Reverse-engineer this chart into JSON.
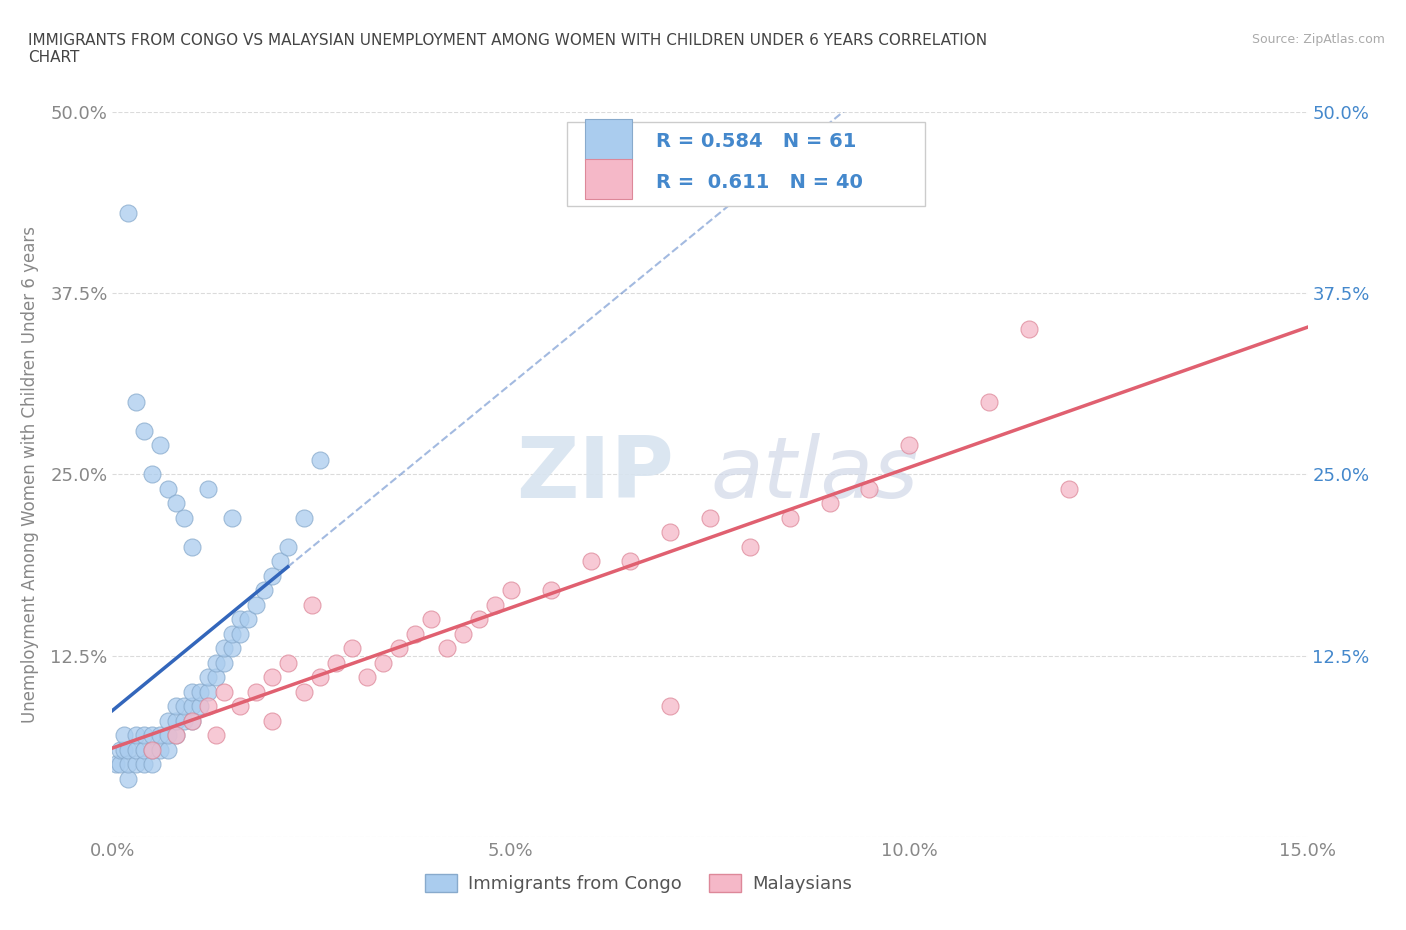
{
  "title": "IMMIGRANTS FROM CONGO VS MALAYSIAN UNEMPLOYMENT AMONG WOMEN WITH CHILDREN UNDER 6 YEARS CORRELATION\nCHART",
  "source": "Source: ZipAtlas.com",
  "ylabel": "Unemployment Among Women with Children Under 6 years",
  "xlim": [
    0.0,
    0.15
  ],
  "ylim": [
    0.0,
    0.5
  ],
  "xticks": [
    0.0,
    0.05,
    0.1,
    0.15
  ],
  "xtick_labels": [
    "0.0%",
    "5.0%",
    "10.0%",
    "15.0%"
  ],
  "yticks": [
    0.0,
    0.125,
    0.25,
    0.375,
    0.5
  ],
  "ytick_labels": [
    "",
    "12.5%",
    "25.0%",
    "37.5%",
    "50.0%"
  ],
  "watermark_zip": "ZIP",
  "watermark_atlas": "atlas",
  "R_congo": 0.584,
  "N_congo": 61,
  "R_malay": 0.611,
  "N_malay": 40,
  "congo_color": "#aaccee",
  "congo_edge": "#88aacc",
  "malay_color": "#f5b8c8",
  "malay_edge": "#dd8899",
  "congo_line_color": "#3366bb",
  "malay_line_color": "#e06070",
  "background_color": "#ffffff",
  "grid_color": "#cccccc",
  "title_color": "#444444",
  "axis_label_color": "#888888",
  "right_tick_color": "#4488cc",
  "congo_x": [
    0.0005,
    0.001,
    0.001,
    0.0015,
    0.0015,
    0.002,
    0.002,
    0.002,
    0.003,
    0.003,
    0.003,
    0.004,
    0.004,
    0.004,
    0.005,
    0.005,
    0.005,
    0.006,
    0.006,
    0.007,
    0.007,
    0.007,
    0.008,
    0.008,
    0.008,
    0.009,
    0.009,
    0.01,
    0.01,
    0.01,
    0.011,
    0.011,
    0.012,
    0.012,
    0.013,
    0.013,
    0.014,
    0.014,
    0.015,
    0.015,
    0.016,
    0.016,
    0.017,
    0.018,
    0.019,
    0.02,
    0.021,
    0.022,
    0.024,
    0.026,
    0.002,
    0.003,
    0.004,
    0.005,
    0.006,
    0.007,
    0.008,
    0.009,
    0.01,
    0.012,
    0.015
  ],
  "congo_y": [
    0.05,
    0.05,
    0.06,
    0.06,
    0.07,
    0.04,
    0.05,
    0.06,
    0.05,
    0.06,
    0.07,
    0.05,
    0.06,
    0.07,
    0.05,
    0.06,
    0.07,
    0.06,
    0.07,
    0.06,
    0.07,
    0.08,
    0.07,
    0.08,
    0.09,
    0.08,
    0.09,
    0.08,
    0.09,
    0.1,
    0.09,
    0.1,
    0.1,
    0.11,
    0.11,
    0.12,
    0.12,
    0.13,
    0.13,
    0.14,
    0.14,
    0.15,
    0.15,
    0.16,
    0.17,
    0.18,
    0.19,
    0.2,
    0.22,
    0.26,
    0.43,
    0.3,
    0.28,
    0.25,
    0.27,
    0.24,
    0.23,
    0.22,
    0.2,
    0.24,
    0.22
  ],
  "malay_x": [
    0.005,
    0.008,
    0.01,
    0.012,
    0.014,
    0.016,
    0.018,
    0.02,
    0.022,
    0.024,
    0.026,
    0.028,
    0.03,
    0.032,
    0.034,
    0.036,
    0.038,
    0.04,
    0.042,
    0.044,
    0.046,
    0.048,
    0.05,
    0.055,
    0.06,
    0.065,
    0.07,
    0.075,
    0.08,
    0.085,
    0.09,
    0.095,
    0.1,
    0.11,
    0.115,
    0.12,
    0.013,
    0.02,
    0.025,
    0.07
  ],
  "malay_y": [
    0.06,
    0.07,
    0.08,
    0.09,
    0.1,
    0.09,
    0.1,
    0.11,
    0.12,
    0.1,
    0.11,
    0.12,
    0.13,
    0.11,
    0.12,
    0.13,
    0.14,
    0.15,
    0.13,
    0.14,
    0.15,
    0.16,
    0.17,
    0.17,
    0.19,
    0.19,
    0.21,
    0.22,
    0.2,
    0.22,
    0.23,
    0.24,
    0.27,
    0.3,
    0.35,
    0.24,
    0.07,
    0.08,
    0.16,
    0.09
  ]
}
